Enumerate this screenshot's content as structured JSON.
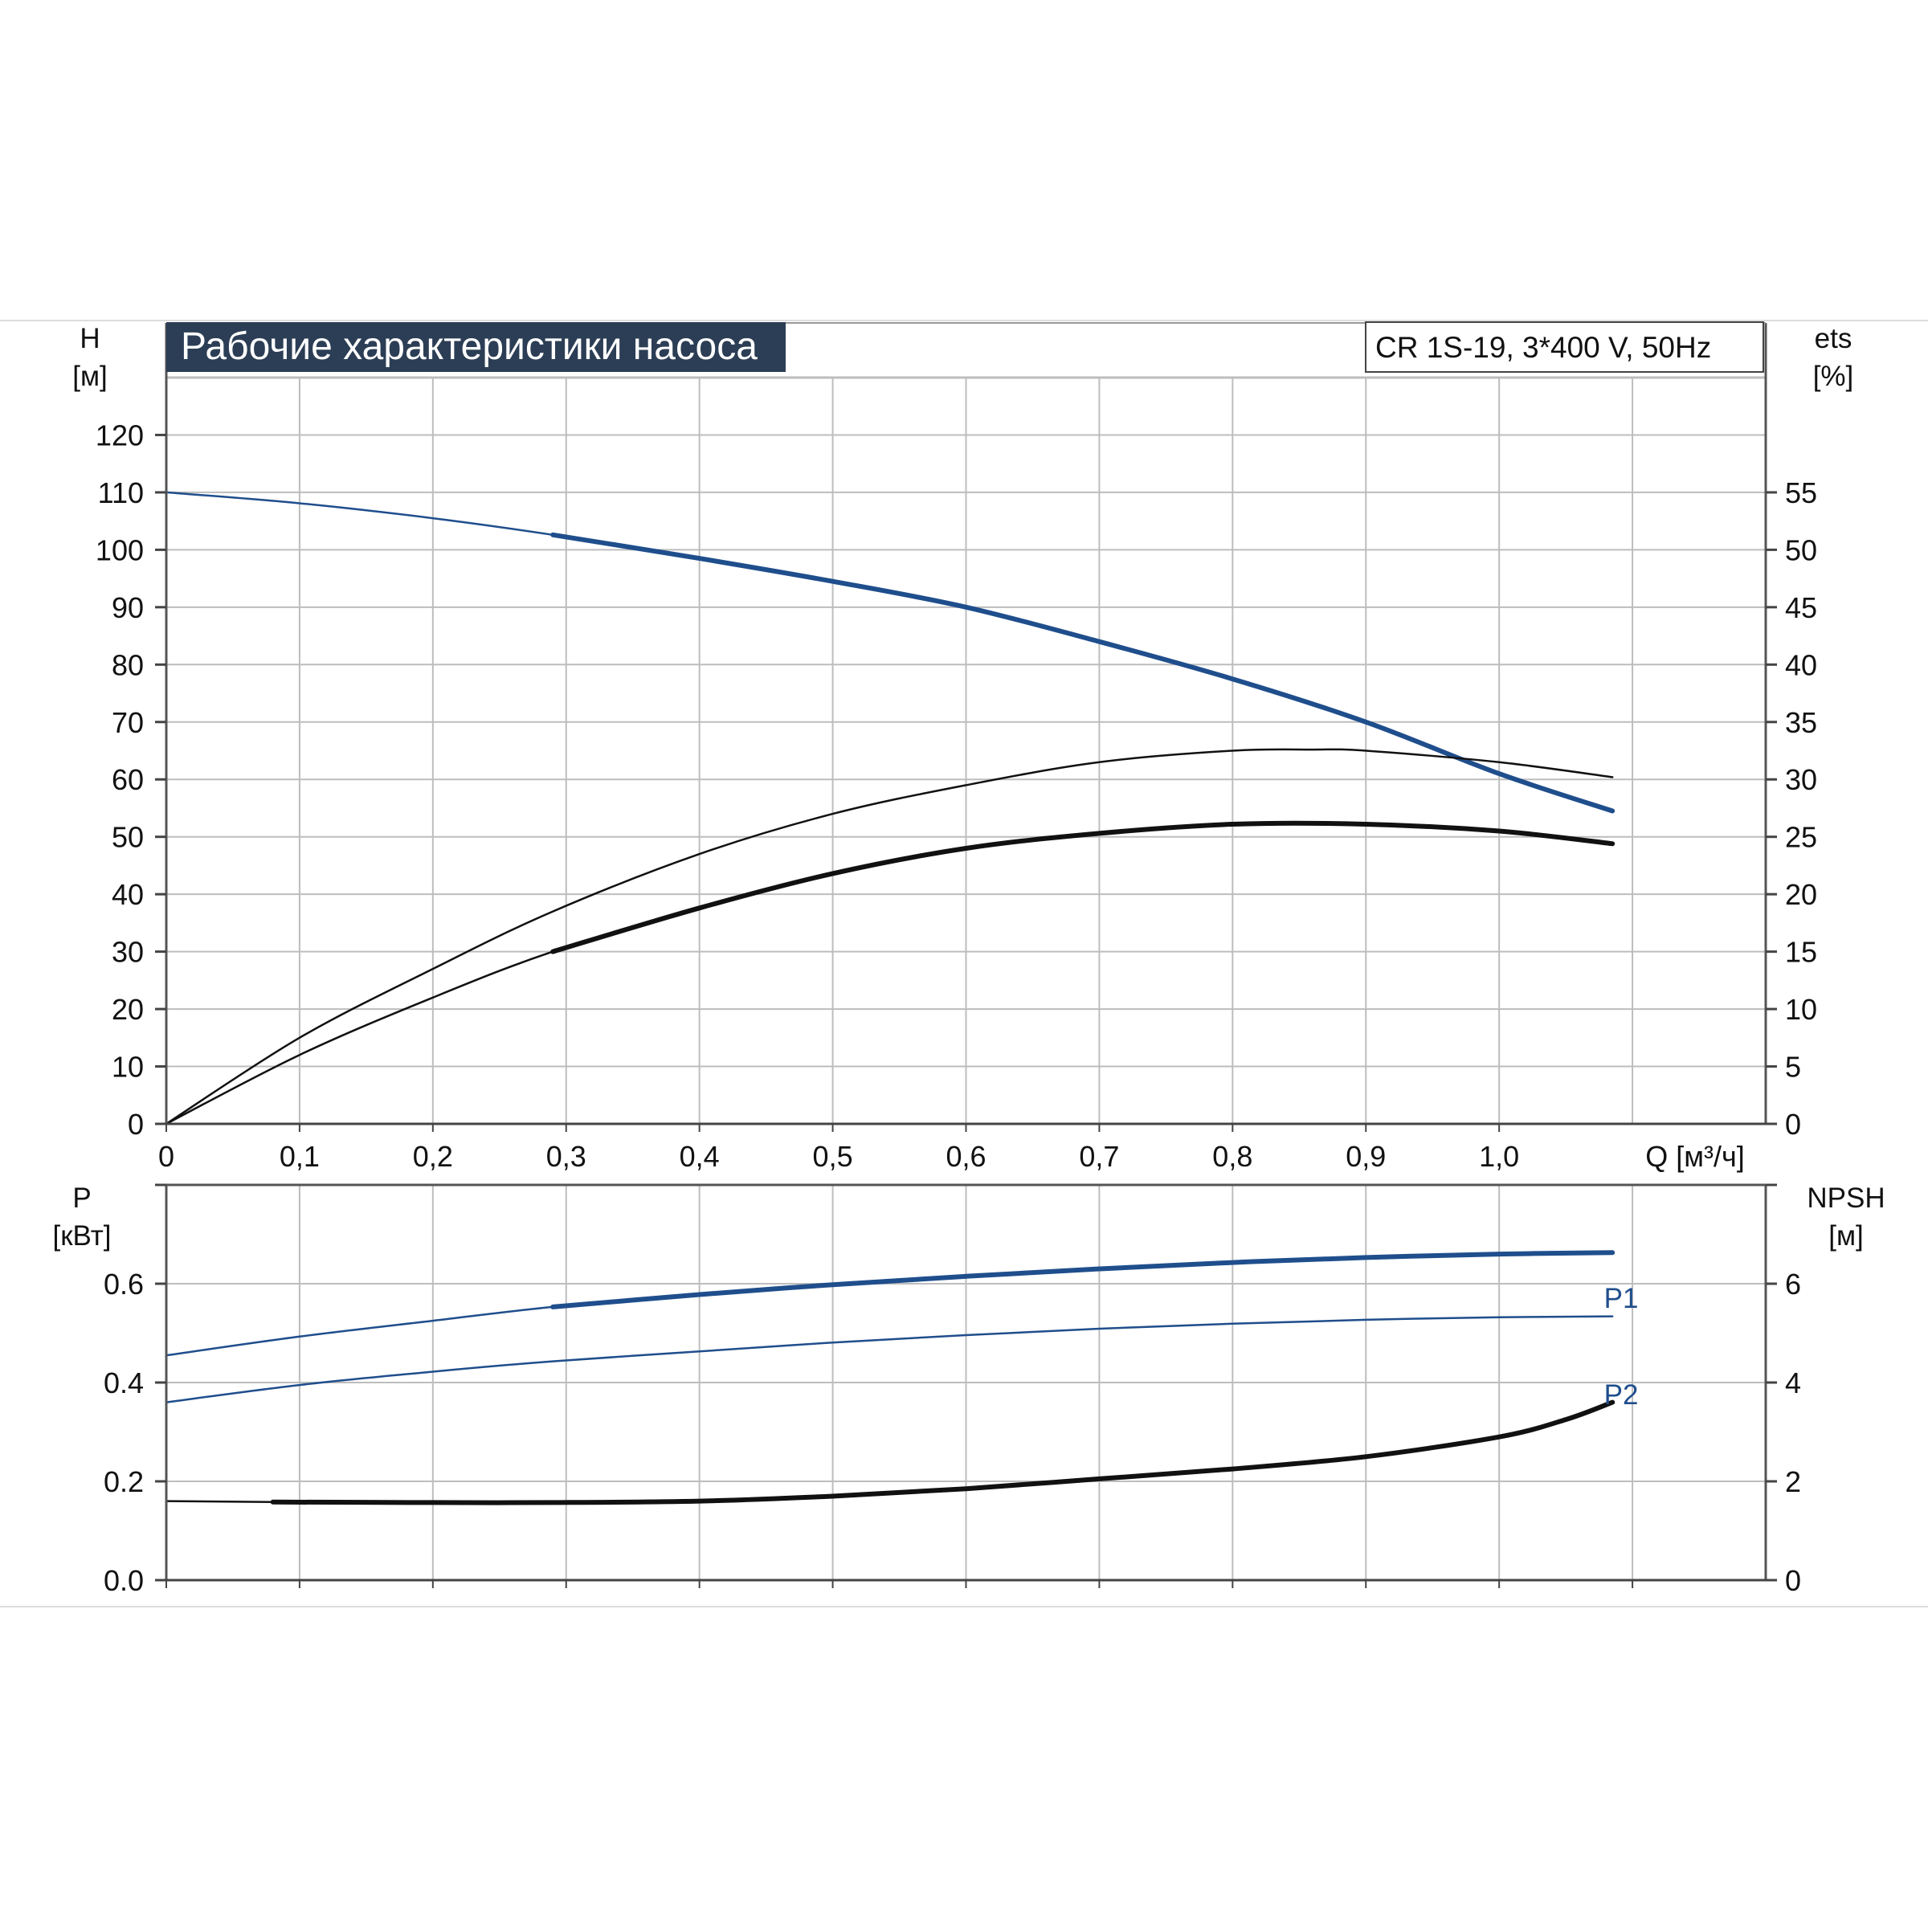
{
  "header": {
    "title": "Рабочие характеристики насоса",
    "model": "CR 1S-19, 3*400 V, 50Hz"
  },
  "colors": {
    "blue": "#1f4e8c",
    "black": "#111111",
    "grid": "#bdbdbd",
    "title_bg": "#2c3e55",
    "title_text": "#ffffff"
  },
  "chart_data": [
    {
      "id": "top",
      "type": "line",
      "grid": true,
      "x_label": "Q [м³/ч]",
      "x_range": [
        0,
        1.2
      ],
      "x_ticks": [
        0,
        0.1,
        0.2,
        0.3,
        0.4,
        0.5,
        0.6,
        0.7,
        0.8,
        0.9,
        1.0
      ],
      "x_tick_labels": [
        "0",
        "0,1",
        "0,2",
        "0,3",
        "0,4",
        "0,5",
        "0,6",
        "0,7",
        "0,8",
        "0,9",
        "1,0"
      ],
      "y_left": {
        "label_line1": "H",
        "label_line2": "[м]",
        "range": [
          0,
          130
        ],
        "ticks": [
          0,
          10,
          20,
          30,
          40,
          50,
          60,
          70,
          80,
          90,
          100,
          110,
          120
        ]
      },
      "y_right": {
        "label_line1": "ets",
        "label_line2": "[%]",
        "range": [
          0,
          65
        ],
        "ticks": [
          0,
          5,
          10,
          15,
          20,
          25,
          30,
          35,
          40,
          45,
          50,
          55
        ]
      },
      "series": [
        {
          "axis": "left",
          "color": "blue",
          "width_thin": 2.5,
          "width_thick": 6,
          "thick_from": 0.29,
          "x": [
            0,
            0.1,
            0.2,
            0.29,
            0.4,
            0.5,
            0.6,
            0.7,
            0.8,
            0.9,
            1.0,
            1.085
          ],
          "y": [
            110,
            108.1,
            105.5,
            102.6,
            98.5,
            94.5,
            90,
            84,
            77.5,
            70,
            61,
            54.5
          ]
        },
        {
          "axis": "right",
          "color": "black",
          "width_thin": 2.5,
          "width_thick": 2.5,
          "thick_from": 0.29,
          "x": [
            0,
            0.1,
            0.2,
            0.29,
            0.4,
            0.5,
            0.6,
            0.7,
            0.8,
            0.86,
            0.9,
            1.0,
            1.085
          ],
          "y": [
            0,
            7.5,
            13.5,
            18.5,
            23.5,
            27,
            29.5,
            31.5,
            32.5,
            32.6,
            32.5,
            31.5,
            30.2
          ]
        },
        {
          "axis": "right",
          "color": "black",
          "width_thin": 2.5,
          "width_thick": 6,
          "thick_from": 0.29,
          "x": [
            0,
            0.1,
            0.2,
            0.29,
            0.4,
            0.5,
            0.6,
            0.7,
            0.8,
            0.9,
            1.0,
            1.085
          ],
          "y": [
            0,
            6,
            11,
            15,
            18.8,
            21.8,
            24,
            25.3,
            26.1,
            26.1,
            25.5,
            24.4
          ]
        }
      ]
    },
    {
      "id": "bottom",
      "type": "line",
      "grid": true,
      "x_range": [
        0,
        1.2
      ],
      "x_ticks": [
        0,
        0.1,
        0.2,
        0.3,
        0.4,
        0.5,
        0.6,
        0.7,
        0.8,
        0.9,
        1.0,
        1.1
      ],
      "y_left": {
        "label_line1": "P",
        "label_line2": "[кВт]",
        "range": [
          0,
          0.8
        ],
        "ticks": [
          0,
          0.2,
          0.4,
          0.6,
          0.8
        ],
        "tick_labels": [
          "0.0",
          "0.2",
          "0.4",
          "0.6",
          ""
        ]
      },
      "y_right": {
        "label_line1": "NPSH",
        "label_line2": "[м]",
        "range": [
          0,
          8
        ],
        "ticks": [
          0,
          2,
          4,
          6,
          8
        ],
        "tick_labels": [
          "0",
          "2",
          "4",
          "6",
          ""
        ]
      },
      "series": [
        {
          "name": "P1",
          "axis": "left",
          "color": "blue",
          "width_thin": 2.5,
          "width_thick": 6,
          "thick_from": 0.29,
          "x": [
            0,
            0.1,
            0.2,
            0.29,
            0.4,
            0.5,
            0.6,
            0.7,
            0.8,
            0.9,
            1.0,
            1.085
          ],
          "y": [
            0.455,
            0.493,
            0.525,
            0.553,
            0.578,
            0.598,
            0.615,
            0.63,
            0.643,
            0.653,
            0.66,
            0.663
          ]
        },
        {
          "name": "P2",
          "axis": "left",
          "color": "blue",
          "width_thin": 2.5,
          "width_thick": 2.5,
          "thick_from": 0.29,
          "x": [
            0,
            0.1,
            0.2,
            0.29,
            0.4,
            0.5,
            0.6,
            0.7,
            0.8,
            0.9,
            1.0,
            1.085
          ],
          "y": [
            0.36,
            0.395,
            0.422,
            0.443,
            0.463,
            0.481,
            0.496,
            0.509,
            0.519,
            0.527,
            0.532,
            0.534
          ]
        },
        {
          "axis": "right",
          "color": "black",
          "width_thin": 2.5,
          "width_thick": 6,
          "thick_from": 0.08,
          "x": [
            0,
            0.08,
            0.2,
            0.29,
            0.4,
            0.5,
            0.6,
            0.7,
            0.8,
            0.9,
            1.0,
            1.05,
            1.085
          ],
          "y": [
            1.6,
            1.58,
            1.57,
            1.57,
            1.6,
            1.7,
            1.85,
            2.05,
            2.25,
            2.5,
            2.9,
            3.25,
            3.6
          ]
        }
      ]
    }
  ]
}
